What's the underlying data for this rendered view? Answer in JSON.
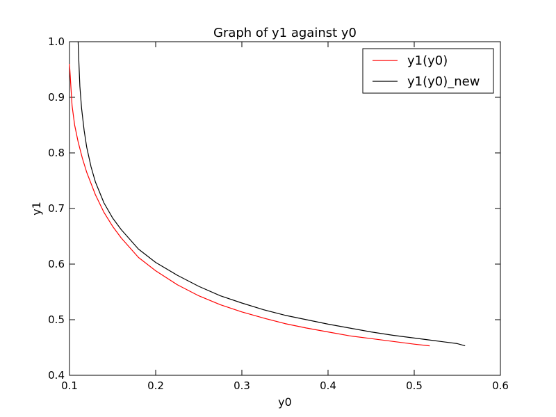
{
  "chart_data": {
    "type": "line",
    "title": "Graph of y1 against y0",
    "xlabel": "y0",
    "ylabel": "y1",
    "xlim": [
      0.1,
      0.6
    ],
    "ylim": [
      0.4,
      1.0
    ],
    "xticks": [
      "0.1",
      "0.2",
      "0.3",
      "0.4",
      "0.5",
      "0.6"
    ],
    "yticks": [
      "0.4",
      "0.5",
      "0.6",
      "0.7",
      "0.8",
      "0.9",
      "1.0"
    ],
    "grid": false,
    "legend_position": "top-right",
    "series": [
      {
        "name": "y1(y0)",
        "color": "#ff0000",
        "x": [
          0.1,
          0.103,
          0.106,
          0.11,
          0.115,
          0.12,
          0.13,
          0.14,
          0.15,
          0.16,
          0.18,
          0.2,
          0.225,
          0.25,
          0.275,
          0.3,
          0.325,
          0.35,
          0.375,
          0.4,
          0.425,
          0.45,
          0.475,
          0.5,
          0.518
        ],
        "y": [
          0.96,
          0.885,
          0.85,
          0.82,
          0.79,
          0.765,
          0.725,
          0.693,
          0.668,
          0.647,
          0.612,
          0.588,
          0.563,
          0.543,
          0.527,
          0.514,
          0.503,
          0.493,
          0.485,
          0.478,
          0.471,
          0.466,
          0.461,
          0.456,
          0.453
        ]
      },
      {
        "name": "y1(y0)_new",
        "color": "#000000",
        "x": [
          0.11,
          0.111,
          0.112,
          0.114,
          0.117,
          0.12,
          0.125,
          0.13,
          0.14,
          0.15,
          0.16,
          0.18,
          0.2,
          0.225,
          0.25,
          0.275,
          0.3,
          0.325,
          0.35,
          0.375,
          0.4,
          0.425,
          0.45,
          0.475,
          0.5,
          0.525,
          0.55,
          0.559
        ],
        "y": [
          1.0,
          0.96,
          0.92,
          0.88,
          0.84,
          0.81,
          0.775,
          0.748,
          0.71,
          0.683,
          0.662,
          0.627,
          0.603,
          0.58,
          0.56,
          0.543,
          0.53,
          0.518,
          0.508,
          0.5,
          0.492,
          0.485,
          0.478,
          0.472,
          0.467,
          0.462,
          0.457,
          0.453
        ]
      }
    ]
  }
}
